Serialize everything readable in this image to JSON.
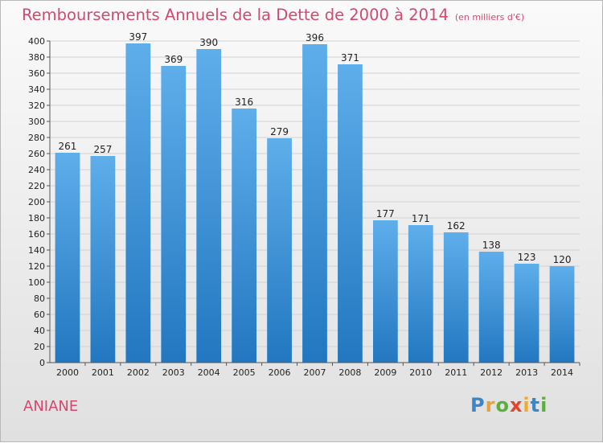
{
  "title": "Remboursements Annuels de la Dette de 2000 à 2014",
  "unit": "(en milliers d'€)",
  "commune": "ANIANE",
  "logo": "Proxiti",
  "colors": {
    "bar_top": "#5eaeea",
    "bar_bottom": "#2277c0",
    "title": "#d04a70"
  },
  "chart_data": {
    "type": "bar",
    "categories": [
      "2000",
      "2001",
      "2002",
      "2003",
      "2004",
      "2005",
      "2006",
      "2007",
      "2008",
      "2009",
      "2010",
      "2011",
      "2012",
      "2013",
      "2014"
    ],
    "values": [
      261,
      257,
      397,
      369,
      390,
      316,
      279,
      396,
      371,
      177,
      171,
      162,
      138,
      123,
      120
    ],
    "title": "Remboursements Annuels de la Dette de 2000 à 2014",
    "xlabel": "",
    "ylabel": "",
    "ylim": [
      0,
      400
    ],
    "ytick_step": 20,
    "grid": true,
    "legend": "none"
  }
}
